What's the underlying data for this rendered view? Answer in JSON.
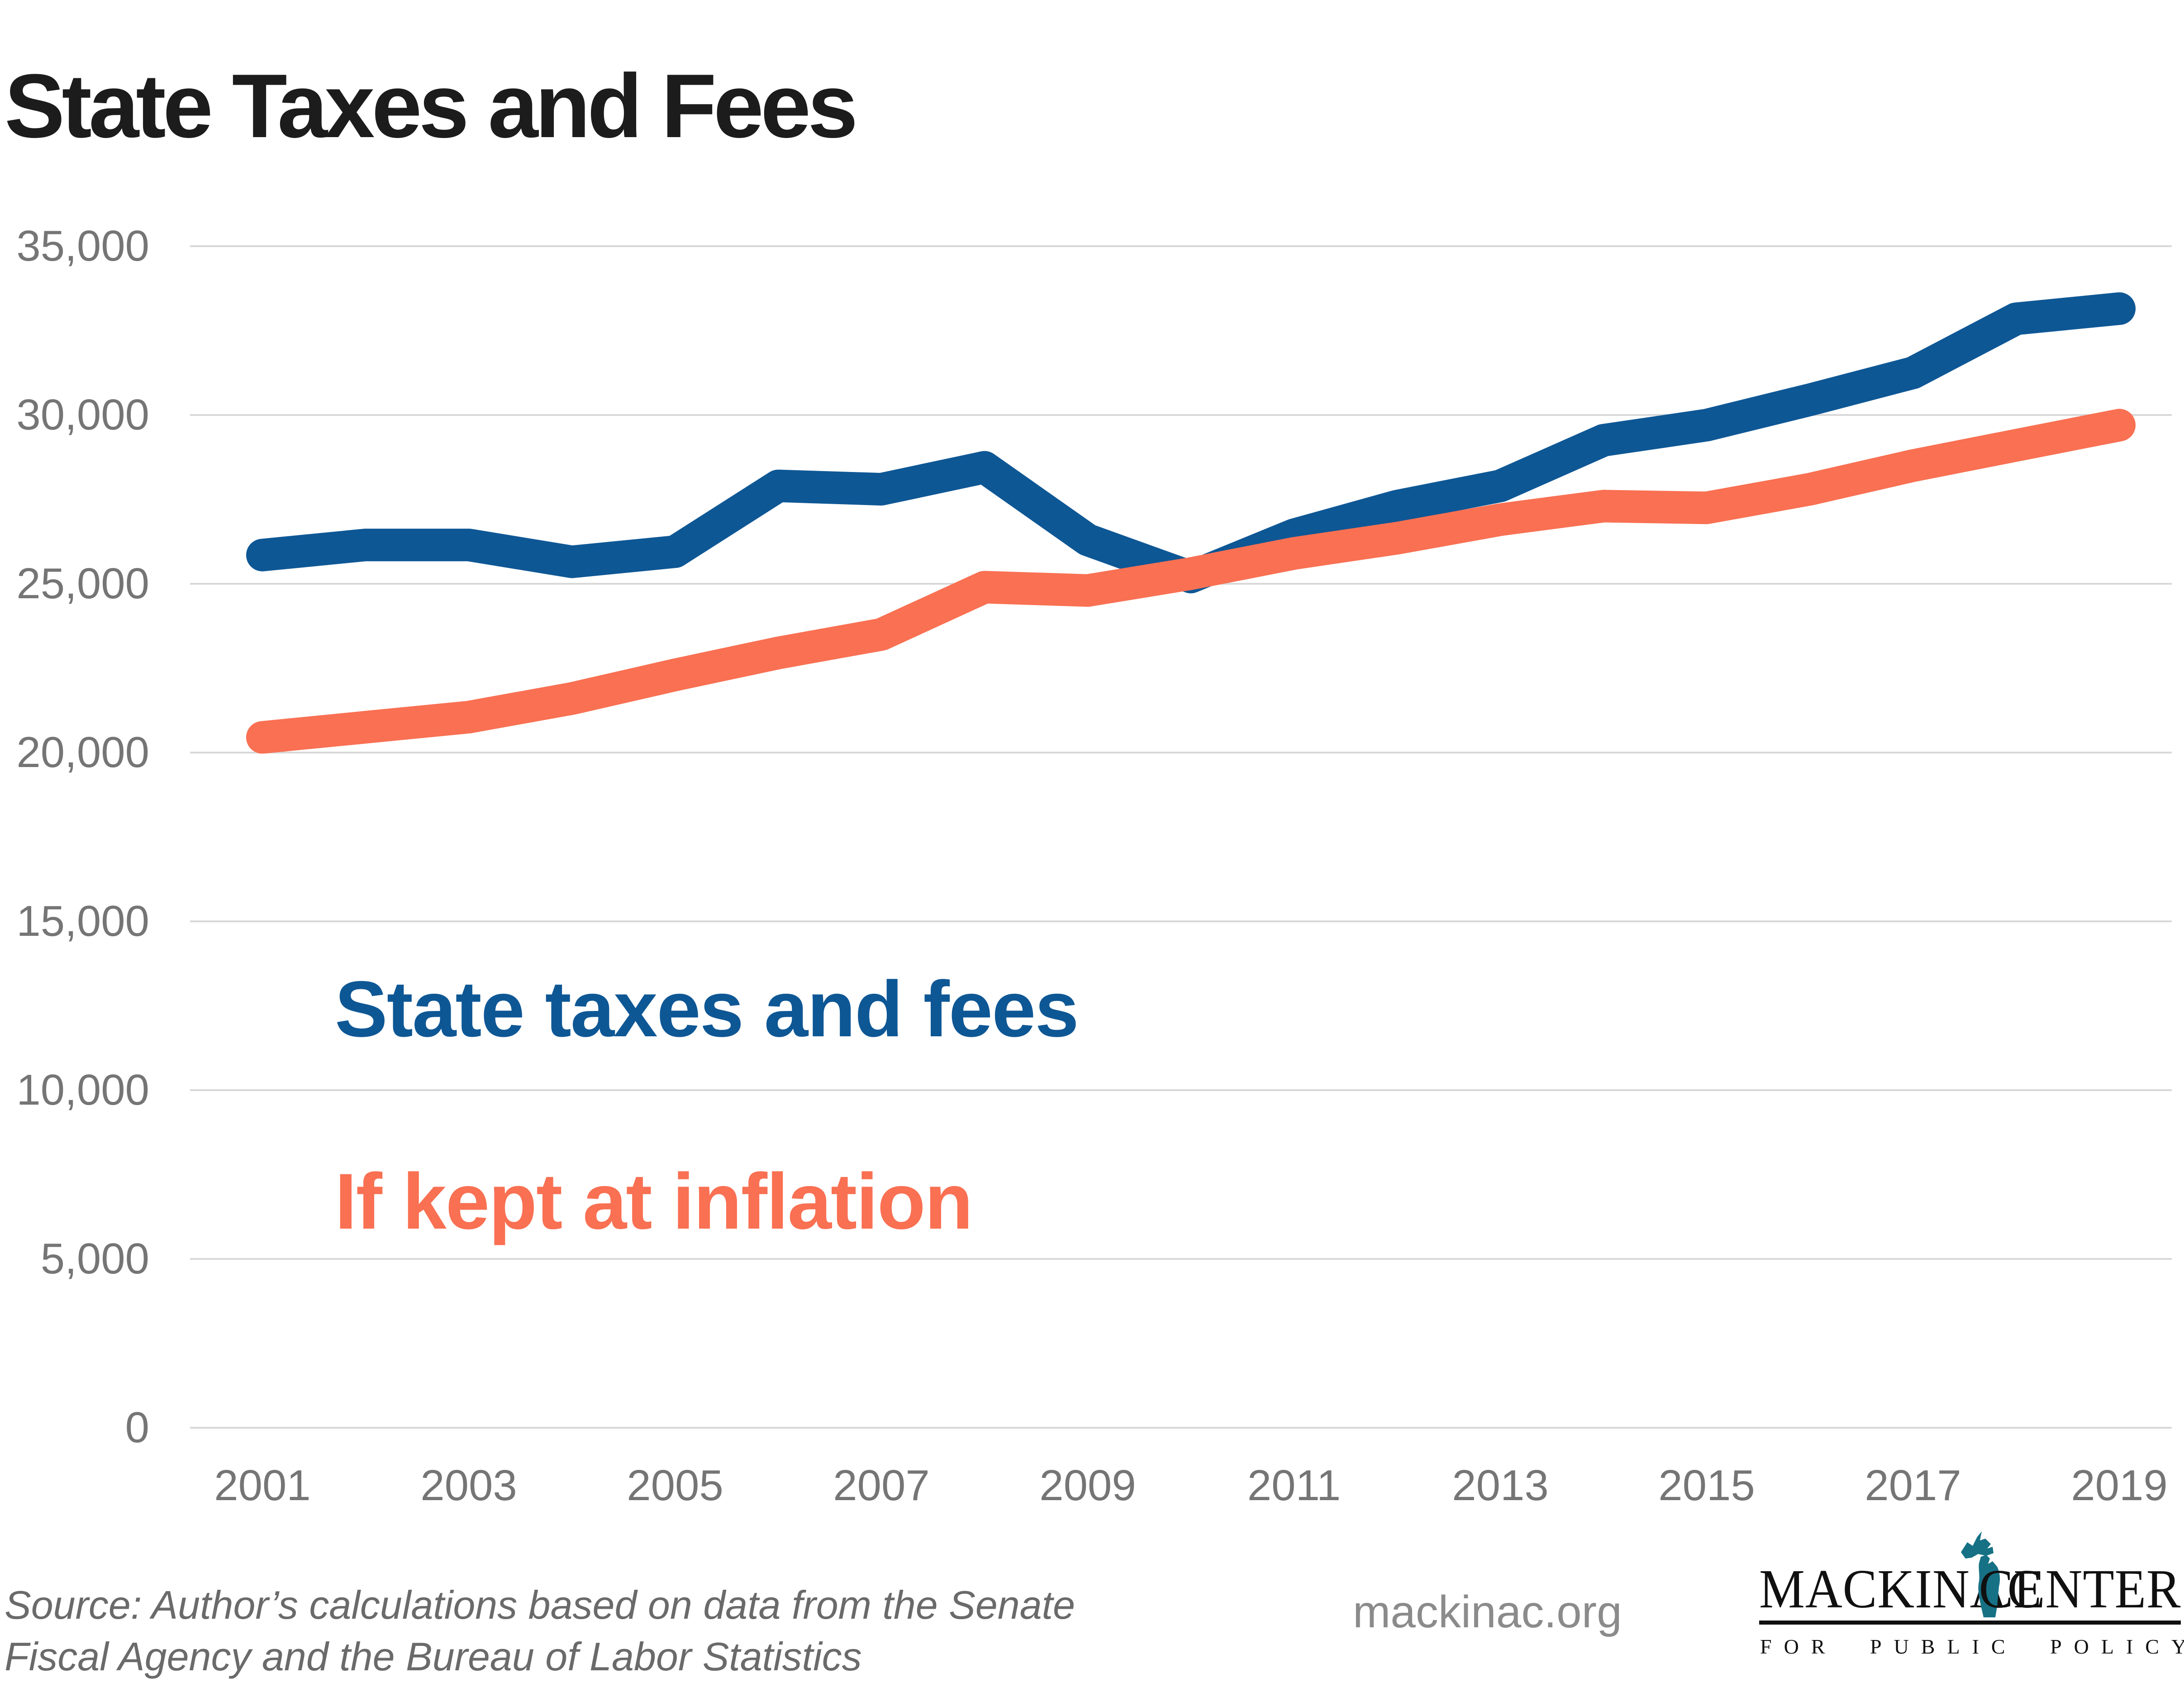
{
  "title": "State Taxes and Fees",
  "chart_data": {
    "type": "line",
    "x": [
      2001,
      2002,
      2003,
      2004,
      2005,
      2006,
      2007,
      2008,
      2009,
      2010,
      2011,
      2012,
      2013,
      2014,
      2015,
      2016,
      2017,
      2018,
      2019
    ],
    "series": [
      {
        "name": "State taxes and fees",
        "color": "#0e5795",
        "values": [
          25850,
          26150,
          26150,
          25650,
          25950,
          27900,
          27800,
          28450,
          26300,
          25200,
          26450,
          27300,
          27900,
          29250,
          29700,
          30450,
          31250,
          32850,
          33150
        ]
      },
      {
        "name": "If kept at inflation",
        "color": "#f97052",
        "values": [
          20450,
          20750,
          21050,
          21600,
          22300,
          22950,
          23500,
          24900,
          24800,
          25300,
          25900,
          26350,
          26900,
          27300,
          27250,
          27800,
          28500,
          29100,
          29700
        ]
      }
    ],
    "title": "State Taxes and Fees",
    "xlabel": "",
    "ylabel": "",
    "ylim": [
      0,
      35000
    ],
    "ytick_interval": 5000,
    "ytick_labels": [
      "0",
      "5,000",
      "10,000",
      "15,000",
      "20,000",
      "25,000",
      "30,000",
      "35,000"
    ],
    "xtick_years": [
      2001,
      2003,
      2005,
      2007,
      2009,
      2011,
      2013,
      2015,
      2017,
      2019
    ],
    "grid": true,
    "gridline_color": "#d8d8d8",
    "line_width": 72,
    "legend_position": "inside-left"
  },
  "legend": {
    "series1_label": "State taxes and fees",
    "series2_label": "If kept at inflation"
  },
  "footer": {
    "source_line1": "Source: Author’s calculations based on data from the Senate",
    "source_line2": "Fiscal Agency and the Bureau of Labor Statistics",
    "website": "mackinac.org"
  },
  "logo": {
    "word_left": "MACKINAC",
    "word_right": "CENTER",
    "tagline": "FOR PUBLIC POLICY",
    "michigan_color": "#177185",
    "text_color": "#101010"
  },
  "colors": {
    "blue_line": "#0e5795",
    "orange_line": "#f97052",
    "axis_text": "#757575",
    "gridline": "#d8d8d8",
    "title_text": "#1c1c1c",
    "source_text": "#6a6a6a",
    "website_text": "#8b8b8b"
  }
}
